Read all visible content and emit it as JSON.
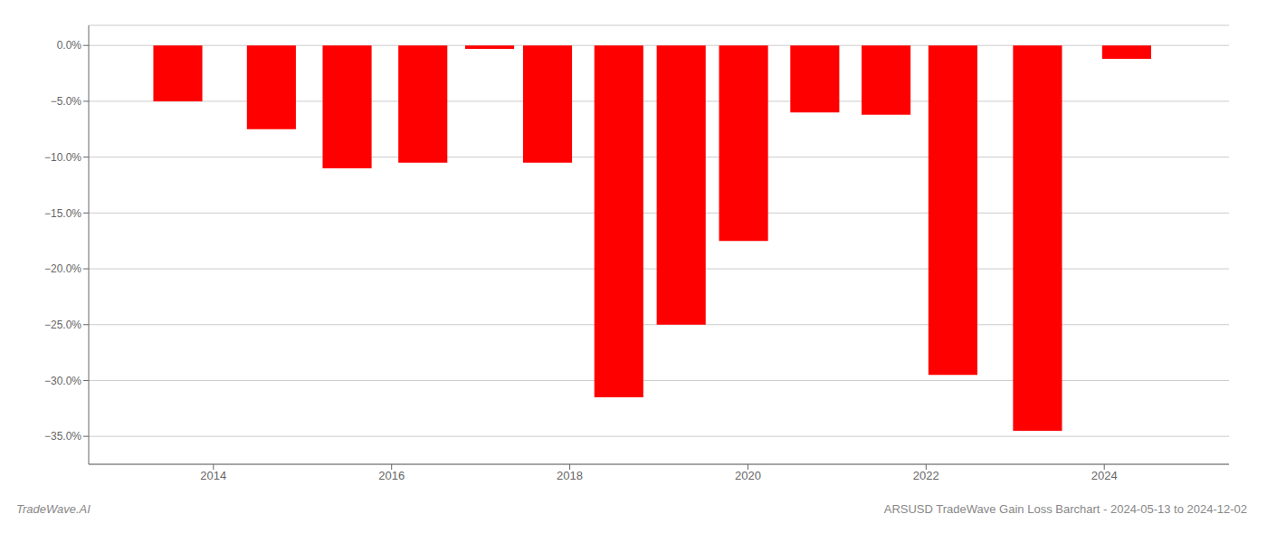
{
  "chart_data": {
    "type": "bar",
    "x": [
      2013.6,
      2014.65,
      2015.5,
      2016.35,
      2017.1,
      2017.75,
      2018.55,
      2019.25,
      2019.95,
      2020.75,
      2021.55,
      2022.3,
      2023.25,
      2024.25
    ],
    "values": [
      -5.0,
      -7.5,
      -11.0,
      -10.5,
      -0.3,
      -10.5,
      -31.5,
      -25.0,
      -17.5,
      -6.0,
      -6.2,
      -29.5,
      -34.5,
      -1.2
    ],
    "color": "#ff0000",
    "xlim": [
      2012.6,
      2025.4
    ],
    "xticks": [
      2014,
      2016,
      2018,
      2020,
      2022,
      2024
    ],
    "ylim": [
      -37.5,
      1.8
    ],
    "yticks": [
      {
        "value": 0.0,
        "label": "0.0%"
      },
      {
        "value": -5.0,
        "label": "−5.0%"
      },
      {
        "value": -10.0,
        "label": "−10.0%"
      },
      {
        "value": -15.0,
        "label": "−15.0%"
      },
      {
        "value": -20.0,
        "label": "−20.0%"
      },
      {
        "value": -25.0,
        "label": "−25.0%"
      },
      {
        "value": -30.0,
        "label": "−30.0%"
      },
      {
        "value": -35.0,
        "label": "−35.0%"
      }
    ],
    "grid": true,
    "annotations": [
      "TradeWave.AI",
      "ARSUSD TradeWave Gain Loss Barchart - 2024-05-13 to 2024-12-02"
    ]
  }
}
